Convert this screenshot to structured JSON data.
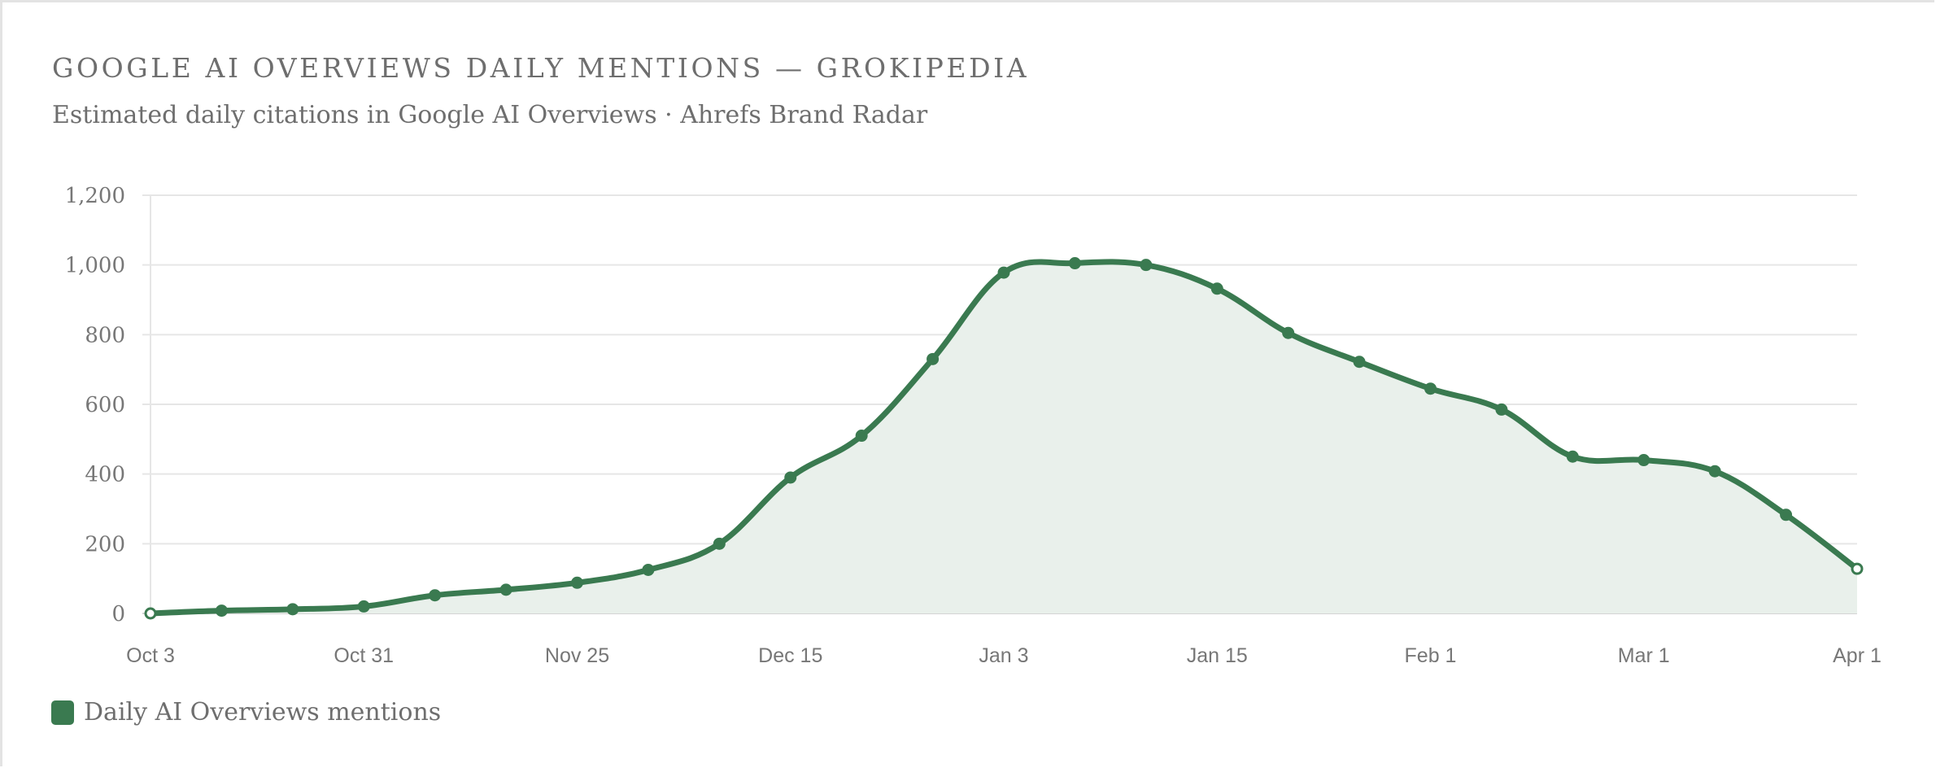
{
  "header": {
    "title": "GOOGLE AI OVERVIEWS DAILY MENTIONS — GROKIPEDIA",
    "subtitle": "Estimated daily citations in Google AI Overviews · Ahrefs Brand Radar"
  },
  "legend": {
    "label": "Daily AI Overviews mentions",
    "color": "#3a7a50"
  },
  "colors": {
    "line": "#3a7a50",
    "fill": "#e9f0eb",
    "grid": "#e6e6e6"
  },
  "chart_data": {
    "type": "area",
    "title": "GOOGLE AI OVERVIEWS DAILY MENTIONS — GROKIPEDIA",
    "subtitle": "Estimated daily citations in Google AI Overviews · Ahrefs Brand Radar",
    "xlabel": "",
    "ylabel": "",
    "ylim": [
      0,
      1200
    ],
    "yticks": [
      "0",
      "200",
      "400",
      "600",
      "800",
      "1,000",
      "1,200"
    ],
    "xticks": [
      "Oct 3",
      "Oct 31",
      "Nov 25",
      "Dec 15",
      "Jan 3",
      "Jan 15",
      "Feb 1",
      "Mar 1",
      "Apr 1"
    ],
    "grid": true,
    "legend_position": "bottom-left",
    "series": [
      {
        "name": "Daily AI Overviews mentions",
        "values": [
          0,
          8,
          12,
          20,
          52,
          68,
          88,
          125,
          200,
          390,
          510,
          730,
          978,
          1005,
          1000,
          932,
          805,
          722,
          645,
          585,
          450,
          440,
          408,
          283,
          128
        ]
      }
    ]
  }
}
